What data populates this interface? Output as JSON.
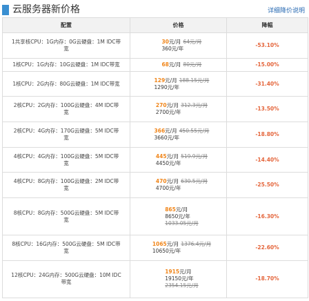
{
  "header": {
    "title": "云服务器新价格",
    "link": "详细降价说明"
  },
  "table": {
    "columns": [
      "配置",
      "价格",
      "降幅"
    ],
    "rows": [
      {
        "config": "1共享核CPU：1G内存：0G云硬盘：1M IDC带宽",
        "new": "30",
        "month_unit": "元/月",
        "old_month": "64元/月",
        "year": "360元/年",
        "old_year": "",
        "drop": "-53.10%"
      },
      {
        "config": "1核CPU：1G内存：10G云硬盘：1M IDC带宽",
        "new": "68",
        "month_unit": "元/月",
        "old_month": "80元/月",
        "year": "",
        "old_year": "",
        "drop": "-15.00%"
      },
      {
        "config": "1核CPU：2G内存：80G云硬盘：1M IDC带宽",
        "new": "129",
        "month_unit": "元/月",
        "old_month": "188.15元/月",
        "year": "1290元/年",
        "old_year": "",
        "drop": "-31.40%"
      },
      {
        "config": "2核CPU：2G内存：100G云硬盘：4M IDC带宽",
        "new": "270",
        "month_unit": "元/月",
        "old_month": "312.3元/月",
        "year": "2700元/年",
        "old_year": "",
        "drop": "-13.50%"
      },
      {
        "config": "2核CPU：4G内存：170G云硬盘：5M IDC带宽",
        "new": "366",
        "month_unit": "元/月",
        "old_month": "450.55元/月",
        "year": "3660元/年",
        "old_year": "",
        "drop": "-18.80%"
      },
      {
        "config": "4核CPU：4G内存：100G云硬盘：5M IDC带宽",
        "new": "445",
        "month_unit": "元/月",
        "old_month": "519.9元/月",
        "year": "4450元/年",
        "old_year": "",
        "drop": "-14.40%"
      },
      {
        "config": "4核CPU：8G内存：100G云硬盘：2M IDC带宽",
        "new": "470",
        "month_unit": "元/月",
        "old_month": "630.5元/月",
        "year": "4700元/年",
        "old_year": "",
        "drop": "-25.50%"
      },
      {
        "config": "8核CPU：8G内存：500G云硬盘：5M IDC带宽",
        "new": "865",
        "month_unit": "元/月",
        "old_month": "",
        "year": "8650元/年",
        "old_year": "1033.05元/月",
        "drop": "-16.30%"
      },
      {
        "config": "8核CPU：16G内存：500G云硬盘：5M IDC带宽",
        "new": "1065",
        "month_unit": "元/月",
        "old_month": "1376.4元/月",
        "year": "10650元/年",
        "old_year": "",
        "drop": "-22.60%"
      },
      {
        "config": "12核CPU：24G内存：500G云硬盘：10M IDC带宽",
        "new": "1915",
        "month_unit": "元/月",
        "old_month": "",
        "year": "19150元/年",
        "old_year": "2354.15元/月",
        "drop": "-18.70%"
      }
    ]
  },
  "colors": {
    "accent_bar": "#3a8fd1",
    "new_price": "#f08519",
    "drop": "#e4643a",
    "link": "#2a6bb3"
  }
}
